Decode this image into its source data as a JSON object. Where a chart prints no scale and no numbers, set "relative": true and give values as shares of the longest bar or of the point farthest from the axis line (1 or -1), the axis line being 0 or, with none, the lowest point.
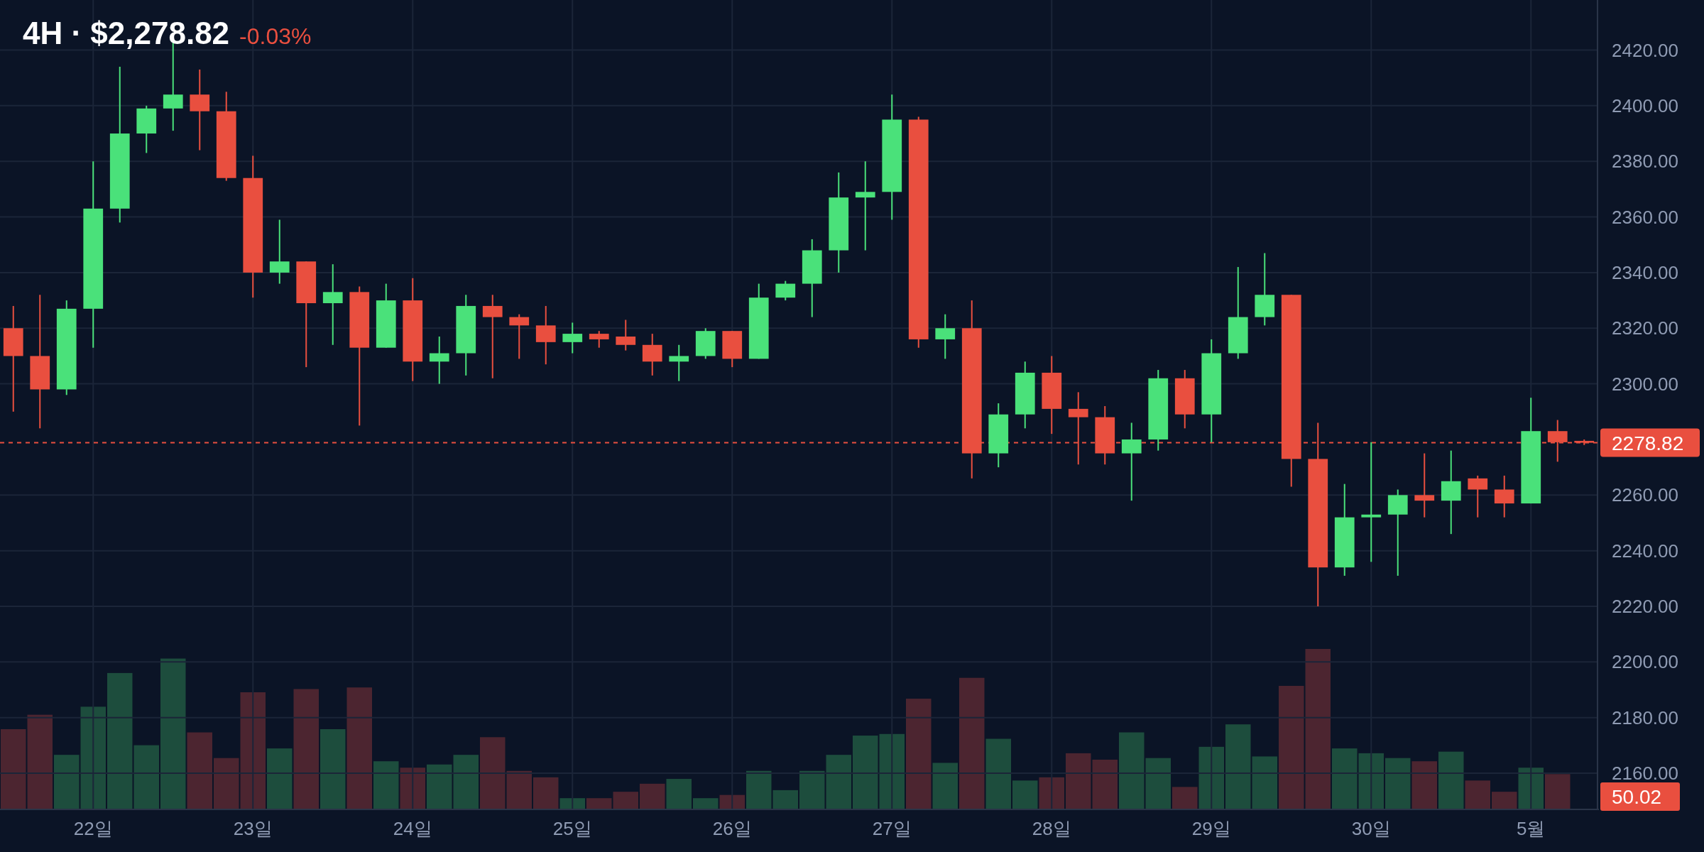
{
  "chart_data": [
    {
      "type": "candlestick",
      "title": "4H · $2,278.82",
      "subtitle": "-0.03%",
      "categories": [
        null,
        null,
        null,
        "22일",
        null,
        null,
        null,
        null,
        null,
        "23일",
        null,
        null,
        null,
        null,
        null,
        "24일",
        null,
        null,
        null,
        null,
        null,
        "25일",
        null,
        null,
        null,
        null,
        null,
        "26일",
        null,
        null,
        null,
        null,
        null,
        "27일",
        null,
        null,
        null,
        null,
        null,
        "28일",
        null,
        null,
        null,
        null,
        null,
        "29일",
        null,
        null,
        null,
        null,
        null,
        "30일",
        null,
        null,
        null,
        null,
        null,
        "5월",
        null,
        null
      ],
      "ohlc": [
        [
          2320,
          2328,
          2290,
          2310
        ],
        [
          2310,
          2332,
          2284,
          2298
        ],
        [
          2298,
          2330,
          2296,
          2327
        ],
        [
          2327,
          2380,
          2313,
          2363
        ],
        [
          2363,
          2414,
          2358,
          2390
        ],
        [
          2390,
          2400,
          2383,
          2399
        ],
        [
          2399,
          2423,
          2391,
          2404
        ],
        [
          2404,
          2413,
          2384,
          2398
        ],
        [
          2398,
          2405,
          2373,
          2374
        ],
        [
          2374,
          2382,
          2331,
          2340
        ],
        [
          2340,
          2359,
          2336,
          2344
        ],
        [
          2344,
          2344,
          2306,
          2329
        ],
        [
          2329,
          2343,
          2314,
          2333
        ],
        [
          2333,
          2335,
          2285,
          2313
        ],
        [
          2313,
          2336,
          2313,
          2330
        ],
        [
          2330,
          2338,
          2301,
          2308
        ],
        [
          2308,
          2317,
          2300,
          2311
        ],
        [
          2311,
          2332,
          2303,
          2328
        ],
        [
          2328,
          2332,
          2302,
          2324
        ],
        [
          2324,
          2325,
          2309,
          2321
        ],
        [
          2321,
          2328,
          2307,
          2315
        ],
        [
          2315,
          2322,
          2311,
          2318
        ],
        [
          2318,
          2319,
          2313,
          2316
        ],
        [
          2317,
          2323,
          2312,
          2314
        ],
        [
          2314,
          2318,
          2303,
          2308
        ],
        [
          2308,
          2314,
          2301,
          2310
        ],
        [
          2310,
          2320,
          2309,
          2319
        ],
        [
          2319,
          2319,
          2306,
          2309
        ],
        [
          2309,
          2336,
          2309,
          2331
        ],
        [
          2331,
          2337,
          2330,
          2336
        ],
        [
          2336,
          2352,
          2324,
          2348
        ],
        [
          2348,
          2376,
          2340,
          2367
        ],
        [
          2367,
          2380,
          2348,
          2369
        ],
        [
          2369,
          2404,
          2359,
          2395
        ],
        [
          2395,
          2396,
          2313,
          2316
        ],
        [
          2316,
          2325,
          2309,
          2320
        ],
        [
          2320,
          2330,
          2266,
          2275
        ],
        [
          2275,
          2293,
          2270,
          2289
        ],
        [
          2289,
          2308,
          2284,
          2304
        ],
        [
          2304,
          2310,
          2282,
          2291
        ],
        [
          2291,
          2297,
          2271,
          2288
        ],
        [
          2288,
          2292,
          2271,
          2275
        ],
        [
          2275,
          2286,
          2258,
          2280
        ],
        [
          2280,
          2305,
          2276,
          2302
        ],
        [
          2302,
          2305,
          2284,
          2289
        ],
        [
          2289,
          2316,
          2279,
          2311
        ],
        [
          2311,
          2342,
          2309,
          2324
        ],
        [
          2324,
          2347,
          2321,
          2332
        ],
        [
          2332,
          2332,
          2263,
          2273
        ],
        [
          2273,
          2286,
          2220,
          2234
        ],
        [
          2234,
          2264,
          2231,
          2252
        ],
        [
          2252,
          2279,
          2236,
          2253
        ],
        [
          2253,
          2262,
          2231,
          2260
        ],
        [
          2260,
          2275,
          2252,
          2258
        ],
        [
          2258,
          2276,
          2246,
          2265
        ],
        [
          2266,
          2267,
          2252,
          2262
        ],
        [
          2262,
          2267,
          2252,
          2257
        ],
        [
          2257,
          2295,
          2257,
          2283
        ],
        [
          2283,
          2287,
          2272,
          2279
        ],
        [
          2279.5,
          2280,
          2278,
          2278.82
        ]
      ],
      "colors": [
        "#e94f3f",
        "#e94f3f",
        "#4ae17a",
        "#4ae17a",
        "#4ae17a",
        "#4ae17a",
        "#4ae17a",
        "#e94f3f",
        "#e94f3f",
        "#e94f3f",
        "#4ae17a",
        "#e94f3f",
        "#4ae17a",
        "#e94f3f",
        "#4ae17a",
        "#e94f3f",
        "#4ae17a",
        "#4ae17a",
        "#e94f3f",
        "#e94f3f",
        "#e94f3f",
        "#4ae17a",
        "#e94f3f",
        "#e94f3f",
        "#e94f3f",
        "#4ae17a",
        "#4ae17a",
        "#e94f3f",
        "#4ae17a",
        "#4ae17a",
        "#4ae17a",
        "#4ae17a",
        "#4ae17a",
        "#4ae17a",
        "#e94f3f",
        "#4ae17a",
        "#e94f3f",
        "#4ae17a",
        "#4ae17a",
        "#e94f3f",
        "#e94f3f",
        "#e94f3f",
        "#4ae17a",
        "#4ae17a",
        "#e94f3f",
        "#4ae17a",
        "#4ae17a",
        "#4ae17a",
        "#e94f3f",
        "#e94f3f",
        "#4ae17a",
        "#4ae17a",
        "#4ae17a",
        "#e94f3f",
        "#4ae17a",
        "#e94f3f",
        "#e94f3f",
        "#4ae17a",
        "#e94f3f",
        "#e94f3f"
      ],
      "ylim": [
        2147,
        2438
      ],
      "yticks": [
        {
          "value": 2160,
          "label": "2160.00"
        },
        {
          "value": 2180,
          "label": "2180.00"
        },
        {
          "value": 2200,
          "label": "2200.00"
        },
        {
          "value": 2220,
          "label": "2220.00"
        },
        {
          "value": 2240,
          "label": "2240.00"
        },
        {
          "value": 2260,
          "label": "2260.00"
        },
        {
          "value": 2300,
          "label": "2300.00"
        },
        {
          "value": 2320,
          "label": "2320.00"
        },
        {
          "value": 2340,
          "label": "2340.00"
        },
        {
          "value": 2360,
          "label": "2360.00"
        },
        {
          "value": 2380,
          "label": "2380.00"
        },
        {
          "value": 2400,
          "label": "2400.00"
        },
        {
          "value": 2420,
          "label": "2420.00"
        }
      ],
      "grid": true,
      "ref_lines": [
        {
          "axis": "y",
          "value": 2278.82,
          "label": "2278.82",
          "color": "#e94f3f",
          "line_style": "dashed"
        }
      ]
    },
    {
      "type": "bar",
      "relative": true,
      "categories": [
        null,
        null,
        null,
        null,
        null,
        null,
        null,
        null,
        null,
        null,
        null,
        null,
        null,
        null,
        null,
        null,
        null,
        null,
        null,
        null,
        null,
        null,
        null,
        null,
        null,
        null,
        null,
        null,
        null,
        null,
        null,
        null,
        null,
        null,
        null,
        null,
        null,
        null,
        null,
        null,
        null,
        null,
        null,
        null,
        null,
        null,
        null,
        null,
        null,
        null,
        null,
        null,
        null,
        null,
        null,
        null,
        null,
        null,
        null,
        null
      ],
      "values": [
        0.5,
        0.59,
        0.34,
        0.64,
        0.85,
        0.4,
        0.94,
        0.48,
        0.32,
        0.73,
        0.38,
        0.75,
        0.5,
        0.76,
        0.3,
        0.26,
        0.28,
        0.34,
        0.45,
        0.24,
        0.2,
        0.07,
        0.07,
        0.11,
        0.16,
        0.19,
        0.07,
        0.09,
        0.24,
        0.12,
        0.24,
        0.34,
        0.46,
        0.47,
        0.69,
        0.29,
        0.82,
        0.44,
        0.18,
        0.2,
        0.35,
        0.31,
        0.48,
        0.32,
        0.14,
        0.39,
        0.53,
        0.33,
        0.77,
        1,
        0.38,
        0.35,
        0.32,
        0.3,
        0.36,
        0.18,
        0.11,
        0.26,
        0.22,
        null
      ],
      "colors": [
        "#4c2530",
        "#4c2530",
        "#1d4d3d",
        "#1d4d3d",
        "#1d4d3d",
        "#1d4d3d",
        "#1d4d3d",
        "#4c2530",
        "#4c2530",
        "#4c2530",
        "#1d4d3d",
        "#4c2530",
        "#1d4d3d",
        "#4c2530",
        "#1d4d3d",
        "#4c2530",
        "#1d4d3d",
        "#1d4d3d",
        "#4c2530",
        "#4c2530",
        "#4c2530",
        "#1d4d3d",
        "#4c2530",
        "#4c2530",
        "#4c2530",
        "#1d4d3d",
        "#1d4d3d",
        "#4c2530",
        "#1d4d3d",
        "#1d4d3d",
        "#1d4d3d",
        "#1d4d3d",
        "#1d4d3d",
        "#1d4d3d",
        "#4c2530",
        "#1d4d3d",
        "#4c2530",
        "#1d4d3d",
        "#1d4d3d",
        "#4c2530",
        "#4c2530",
        "#4c2530",
        "#1d4d3d",
        "#1d4d3d",
        "#4c2530",
        "#1d4d3d",
        "#1d4d3d",
        "#1d4d3d",
        "#4c2530",
        "#4c2530",
        "#1d4d3d",
        "#1d4d3d",
        "#1d4d3d",
        "#4c2530",
        "#1d4d3d",
        "#4c2530",
        "#4c2530",
        "#1d4d3d",
        "#4c2530",
        null
      ],
      "annotations": [
        "50.02"
      ]
    }
  ]
}
